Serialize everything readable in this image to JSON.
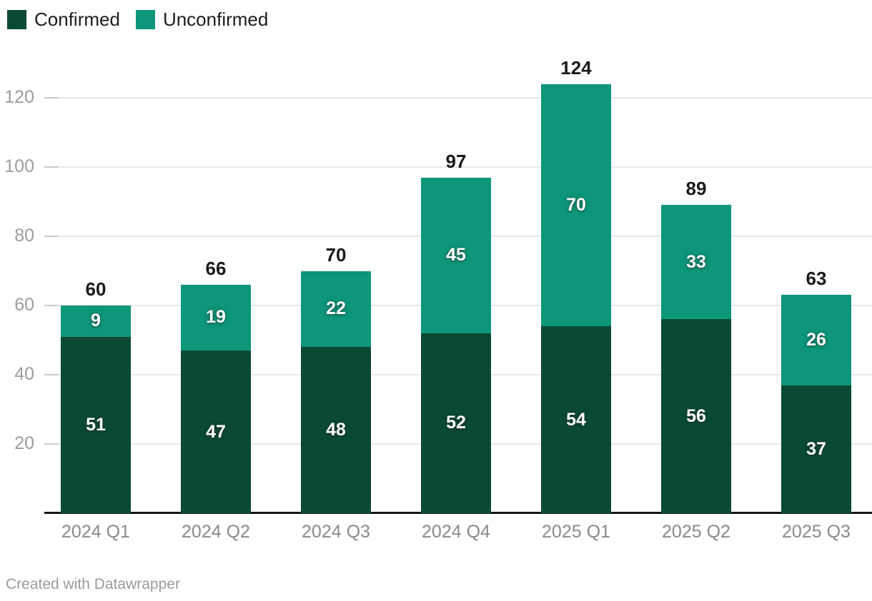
{
  "legend": {
    "items": [
      {
        "label": "Confirmed",
        "color": "#0a4a34"
      },
      {
        "label": "Unconfirmed",
        "color": "#0d9679"
      }
    ]
  },
  "footer": {
    "text": "Created with Datawrapper"
  },
  "chart_data": {
    "type": "bar",
    "stacked": true,
    "categories": [
      "2024 Q1",
      "2024 Q2",
      "2024 Q3",
      "2024 Q4",
      "2025 Q1",
      "2025 Q2",
      "2025 Q3"
    ],
    "series": [
      {
        "name": "Confirmed",
        "color": "#0a4a34",
        "values": [
          51,
          47,
          48,
          52,
          54,
          56,
          37
        ]
      },
      {
        "name": "Unconfirmed",
        "color": "#0d9679",
        "values": [
          9,
          19,
          22,
          45,
          70,
          33,
          26
        ]
      }
    ],
    "totals": [
      60,
      66,
      70,
      97,
      124,
      89,
      63
    ],
    "y_axis": {
      "ticks": [
        20,
        40,
        60,
        80,
        100,
        120
      ],
      "range": [
        0,
        128
      ]
    },
    "grid": true,
    "legend_position": "top-left"
  }
}
